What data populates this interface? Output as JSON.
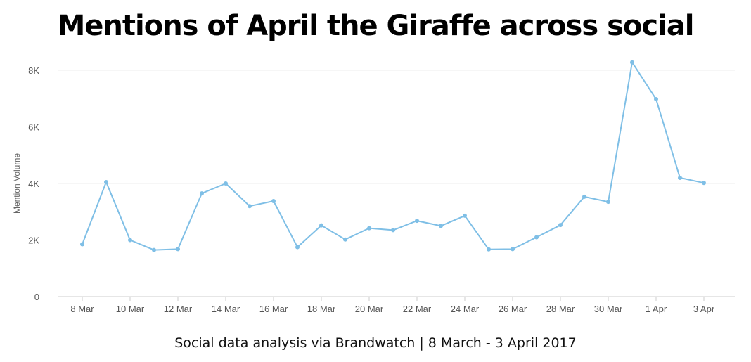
{
  "title": "Mentions of April the Giraffe across social",
  "subtitle": "Social data analysis via Brandwatch | 8 March - 3 April 2017",
  "colors": {
    "line": "#7fbfe6",
    "grid": "#eeeeee",
    "axis": "#cccccc"
  },
  "chart_data": {
    "type": "line",
    "ylabel": "Mention Volume",
    "ylim": [
      0,
      8000
    ],
    "y_ticks": [
      0,
      2000,
      4000,
      6000,
      8000
    ],
    "y_tick_labels": [
      "0",
      "2K",
      "4K",
      "6K",
      "8K"
    ],
    "x_tick_labels": [
      "8 Mar",
      "10 Mar",
      "12 Mar",
      "14 Mar",
      "16 Mar",
      "18 Mar",
      "20 Mar",
      "22 Mar",
      "24 Mar",
      "26 Mar",
      "28 Mar",
      "30 Mar",
      "1 Apr",
      "3 Apr"
    ],
    "grid": true,
    "legend": "none",
    "series": [
      {
        "x": [
          "2017-03-08",
          "2017-03-09",
          "2017-03-10",
          "2017-03-11",
          "2017-03-12",
          "2017-03-13",
          "2017-03-14",
          "2017-03-15",
          "2017-03-16",
          "2017-03-17",
          "2017-03-18",
          "2017-03-19",
          "2017-03-20",
          "2017-03-21",
          "2017-03-22",
          "2017-03-23",
          "2017-03-24",
          "2017-03-25",
          "2017-03-26",
          "2017-03-27",
          "2017-03-28",
          "2017-03-29",
          "2017-03-30",
          "2017-03-31",
          "2017-04-01",
          "2017-04-02",
          "2017-04-03"
        ],
        "values": [
          1850,
          4050,
          2000,
          1650,
          1680,
          3650,
          4000,
          3200,
          3380,
          1750,
          2520,
          2020,
          2420,
          2350,
          2680,
          2500,
          2860,
          1670,
          1680,
          2100,
          2530,
          3530,
          3350,
          8280,
          6980,
          4200,
          4020
        ]
      }
    ]
  }
}
